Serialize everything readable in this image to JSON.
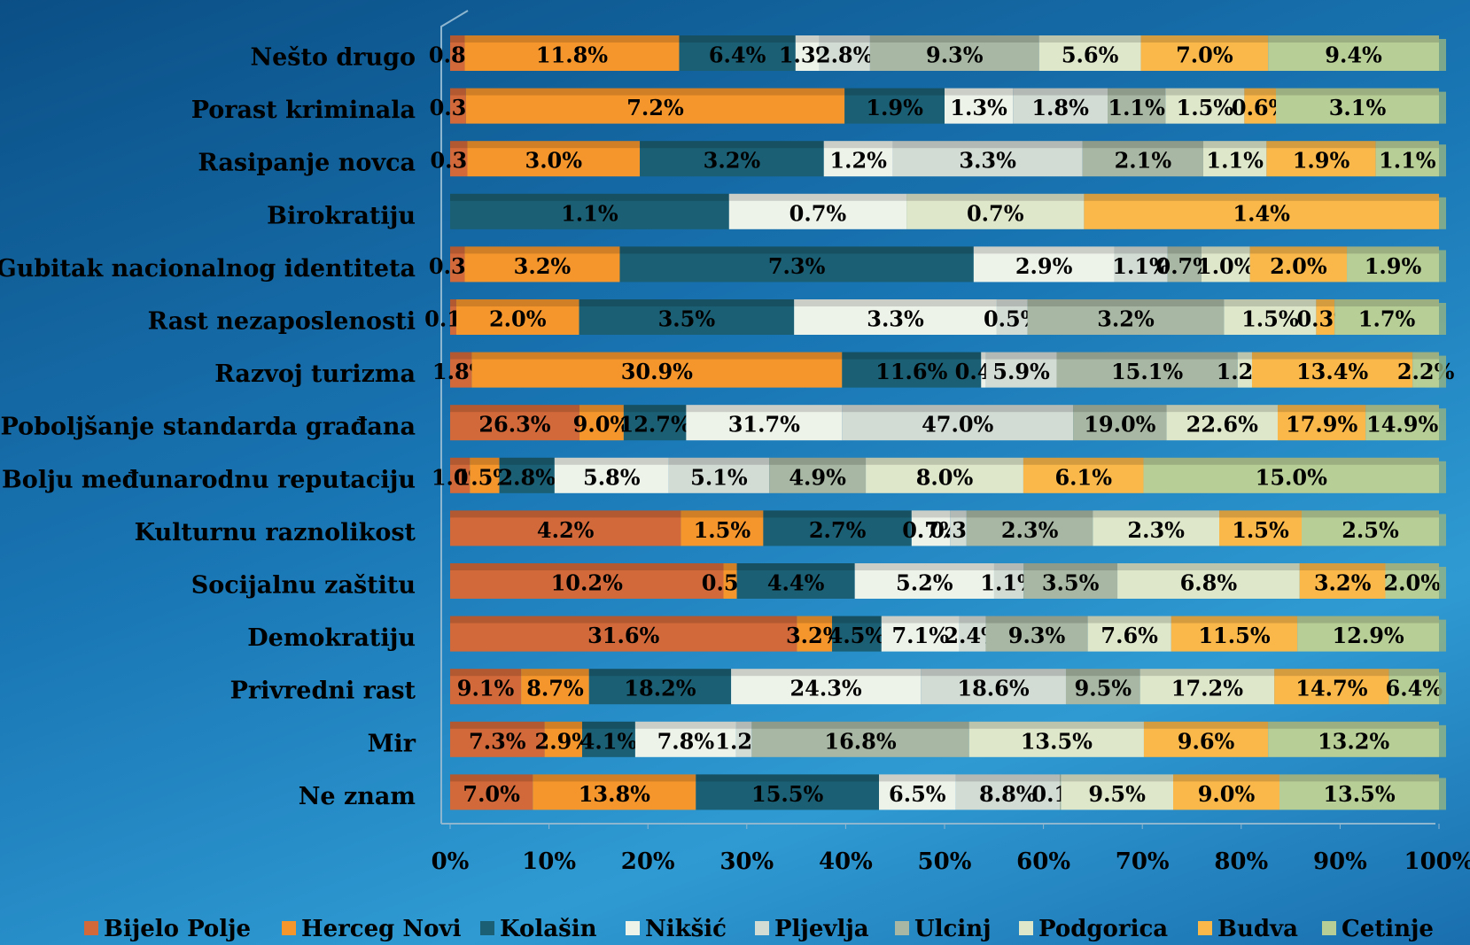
{
  "chart_data": {
    "type": "bar",
    "stacked": "percent",
    "orientation": "horizontal",
    "categories": [
      "Nešto drugo",
      "Porast kriminala",
      "Rasipanje novca",
      "Birokratiju",
      "Gubitak nacionalnog identiteta",
      "Rast nezaposlenosti",
      "Razvoj turizma",
      "Poboljšanje standarda građana",
      "Bolju međunarodnu reputaciju",
      "Kulturnu raznolikost",
      "Socijalnu zaštitu",
      "Demokratiju",
      "Privredni rast",
      "Mir",
      "Ne znam"
    ],
    "series": [
      {
        "name": "Bijelo Polje",
        "color": "#d2693a",
        "values": [
          0.8,
          0.3,
          0.3,
          null,
          0.3,
          0.1,
          1.8,
          26.3,
          1.0,
          4.2,
          10.2,
          31.6,
          9.1,
          7.3,
          7.0
        ],
        "value_labels": [
          "0.8%",
          "0.3%",
          "0.3%",
          null,
          "0.3%",
          "0.1%",
          "1.8%",
          "26.3%",
          "1.0%",
          "4.2%",
          "10.2%",
          "31.6%",
          "9.1%",
          "7.3%",
          "7.0%"
        ]
      },
      {
        "name": "Herceg Novi",
        "color": "#f5962d",
        "values": [
          11.8,
          7.2,
          3.0,
          null,
          3.2,
          2.0,
          30.9,
          9.0,
          1.5,
          1.5,
          0.5,
          3.2,
          8.7,
          2.9,
          13.8
        ],
        "value_labels": [
          "11.8%",
          "7.2%",
          "3.0%",
          null,
          "3.2%",
          "2.0%",
          "30.9%",
          "9.0%",
          "1.5%",
          "1.5%",
          "0.5%",
          "3.2%",
          "8.7%",
          "2.9%",
          "13.8%"
        ]
      },
      {
        "name": "Kolašin",
        "color": "#1a5f73",
        "values": [
          6.4,
          1.9,
          3.2,
          1.1,
          7.3,
          3.5,
          11.6,
          12.7,
          2.8,
          2.7,
          4.4,
          4.5,
          18.2,
          4.1,
          15.5
        ],
        "value_labels": [
          "6.4%",
          "1.9%",
          "3.2%",
          "1.1%",
          "7.3%",
          "3.5%",
          "11.6%",
          "12.7%",
          "2.8%",
          "2.7%",
          "4.4%",
          "4.5%",
          "18.2%",
          "4.1%",
          "15.5%"
        ]
      },
      {
        "name": "Nikšić",
        "color": "#eef3ea",
        "values": [
          1.3,
          1.3,
          1.2,
          0.7,
          2.9,
          3.3,
          0.4,
          31.7,
          5.8,
          0.7,
          5.2,
          7.1,
          24.3,
          7.8,
          6.5
        ],
        "value_labels": [
          "1.3%",
          "1.3%",
          "1.2%",
          "0.7%",
          "2.9%",
          "3.3%",
          "0.4%",
          "31.7%",
          "5.8%",
          "0.7%",
          "5.2%",
          "7.1%",
          "24.3%",
          "7.8%",
          "6.5%"
        ]
      },
      {
        "name": "Pljevlja",
        "color": "#d3dbd5",
        "values": [
          2.8,
          1.8,
          3.3,
          null,
          1.1,
          0.5,
          5.9,
          47.0,
          5.1,
          0.3,
          1.1,
          2.4,
          18.6,
          1.2,
          8.8
        ],
        "value_labels": [
          "2.8%",
          "1.8%",
          "3.3%",
          null,
          "1.1%",
          "0.5%",
          "5.9%",
          "47.0%",
          "5.1%",
          "0.3%",
          "1.1%",
          "2.4%",
          "18.6%",
          "1.2%",
          "8.8%"
        ]
      },
      {
        "name": "Ulcinj",
        "color": "#a8b7a3",
        "values": [
          9.3,
          1.1,
          2.1,
          null,
          0.7,
          3.2,
          15.1,
          19.0,
          4.9,
          2.3,
          3.5,
          9.3,
          9.5,
          16.8,
          0.1
        ],
        "value_labels": [
          "9.3%",
          "1.1%",
          "2.1%",
          null,
          "0.7%",
          "3.2%",
          "15.1%",
          "19.0%",
          "4.9%",
          "2.3%",
          "3.5%",
          "9.3%",
          "9.5%",
          "16.8%",
          "0.1%"
        ]
      },
      {
        "name": "Podgorica",
        "color": "#dfe7cb",
        "values": [
          5.6,
          1.5,
          1.1,
          0.7,
          1.0,
          1.5,
          1.2,
          22.6,
          8.0,
          2.3,
          6.8,
          7.6,
          17.2,
          13.5,
          9.5
        ],
        "value_labels": [
          "5.6%",
          "1.5%",
          "1.1%",
          "0.7%",
          "1.0%",
          "1.5%",
          "1.2%",
          "22.6%",
          "8.0%",
          "2.3%",
          "6.8%",
          "7.6%",
          "17.2%",
          "13.5%",
          "9.5%"
        ]
      },
      {
        "name": "Budva",
        "color": "#fbb84a",
        "values": [
          7.0,
          0.6,
          1.9,
          1.4,
          2.0,
          0.3,
          13.4,
          17.9,
          6.1,
          1.5,
          3.2,
          11.5,
          14.7,
          9.6,
          9.0
        ],
        "value_labels": [
          "7.0%",
          "0.6%",
          "1.9%",
          "1.4%",
          "2.0%",
          "0.3%",
          "13.4%",
          "17.9%",
          "6.1%",
          "1.5%",
          "3.2%",
          "11.5%",
          "14.7%",
          "9.6%",
          "9.0%"
        ]
      },
      {
        "name": "Cetinje",
        "color": "#b8ce97",
        "values": [
          9.4,
          3.1,
          1.1,
          null,
          1.9,
          1.7,
          2.2,
          14.9,
          15.0,
          2.5,
          2.0,
          12.9,
          6.4,
          13.2,
          13.5
        ],
        "value_labels": [
          "9.4%",
          "3.1%",
          "1.1%",
          null,
          "1.9%",
          "1.7%",
          "2.2%",
          "14.9%",
          "15.0%",
          "2.5%",
          "2.0%",
          "12.9%",
          "6.4%",
          "13.2%",
          "13.5%"
        ]
      }
    ],
    "xlim": [
      0,
      100
    ],
    "xticks": [
      {
        "value": 0,
        "label": "0%"
      },
      {
        "value": 10,
        "label": "10%"
      },
      {
        "value": 20,
        "label": "20%"
      },
      {
        "value": 30,
        "label": "30%"
      },
      {
        "value": 40,
        "label": "40%"
      },
      {
        "value": 50,
        "label": "50%"
      },
      {
        "value": 60,
        "label": "60%"
      },
      {
        "value": 70,
        "label": "70%"
      },
      {
        "value": 80,
        "label": "80%"
      },
      {
        "value": 90,
        "label": "90%"
      },
      {
        "value": 100,
        "label": "100%"
      }
    ],
    "legend": "bottom"
  }
}
